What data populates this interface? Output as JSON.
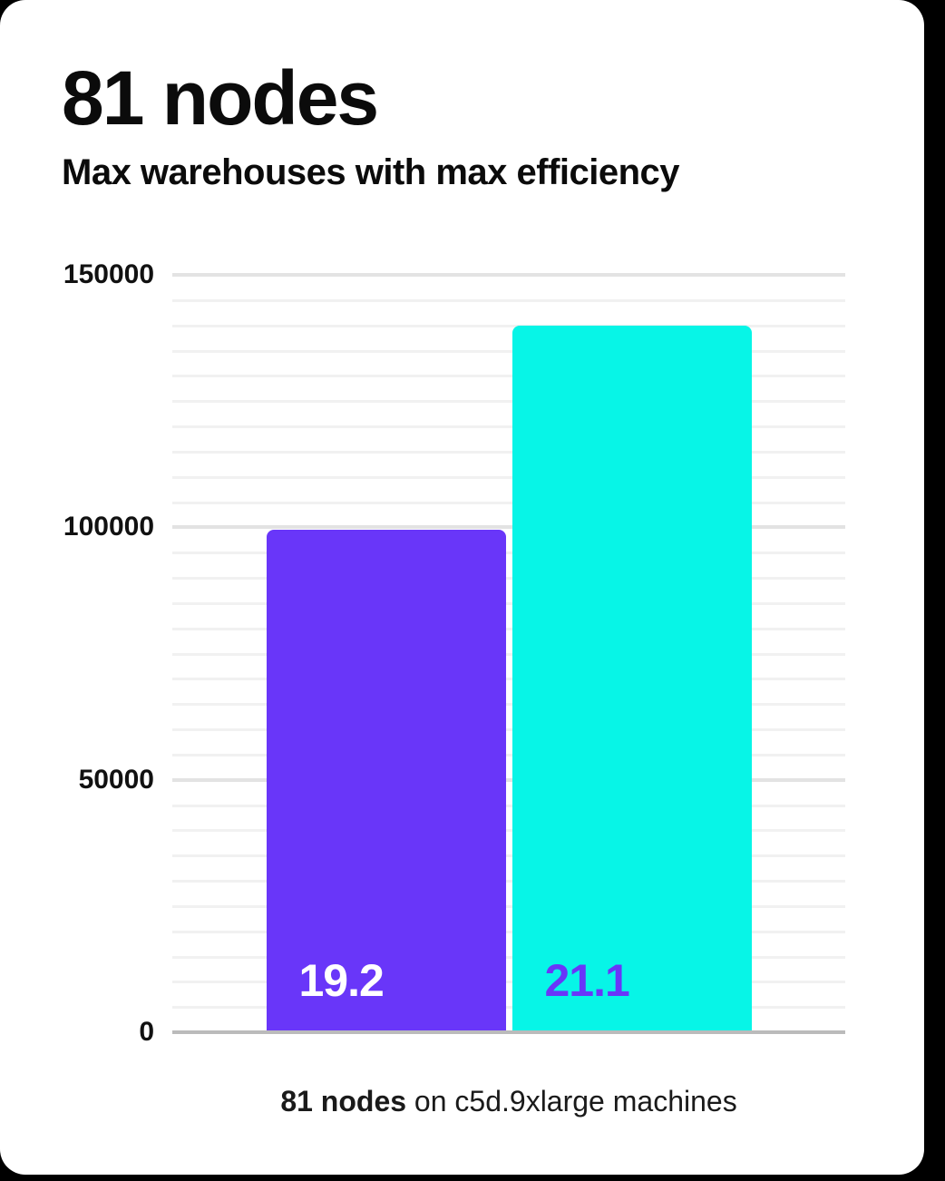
{
  "page": {
    "background": "#000000",
    "card_background": "#FFFFFF"
  },
  "header": {
    "title": "81 nodes",
    "subtitle": "Max warehouses with max efficiency"
  },
  "caption": {
    "highlight": "81 nodes",
    "text": " on c5d.9xlarge machines"
  },
  "chart_data": {
    "type": "bar",
    "title": "81 nodes",
    "subtitle": "Max warehouses with max efficiency",
    "caption": "81 nodes on c5d.9xlarge machines",
    "categories": [
      "19.2",
      "21.1"
    ],
    "values": [
      99500,
      140000
    ],
    "bars": [
      {
        "label": "19.2",
        "value": 99500,
        "color": "#6936F9",
        "label_color": "#FFFFFF"
      },
      {
        "label": "21.1",
        "value": 140000,
        "color": "#07F5E7",
        "label_color": "#6936F9"
      }
    ],
    "xlabel": "",
    "ylabel": "",
    "ylim": [
      0,
      150000
    ],
    "yticks": [
      "0",
      "50000",
      "100000",
      "150000"
    ],
    "ytick_values": [
      0,
      50000,
      100000,
      150000
    ],
    "minor_grid_step": 5000,
    "grid": "horizontal",
    "legend": "none",
    "colors": {
      "minor_gridline": "#F1F1F1",
      "major_gridline": "#E3E3E3",
      "baseline": "#BBBBBB",
      "tick_text": "#111111"
    }
  }
}
